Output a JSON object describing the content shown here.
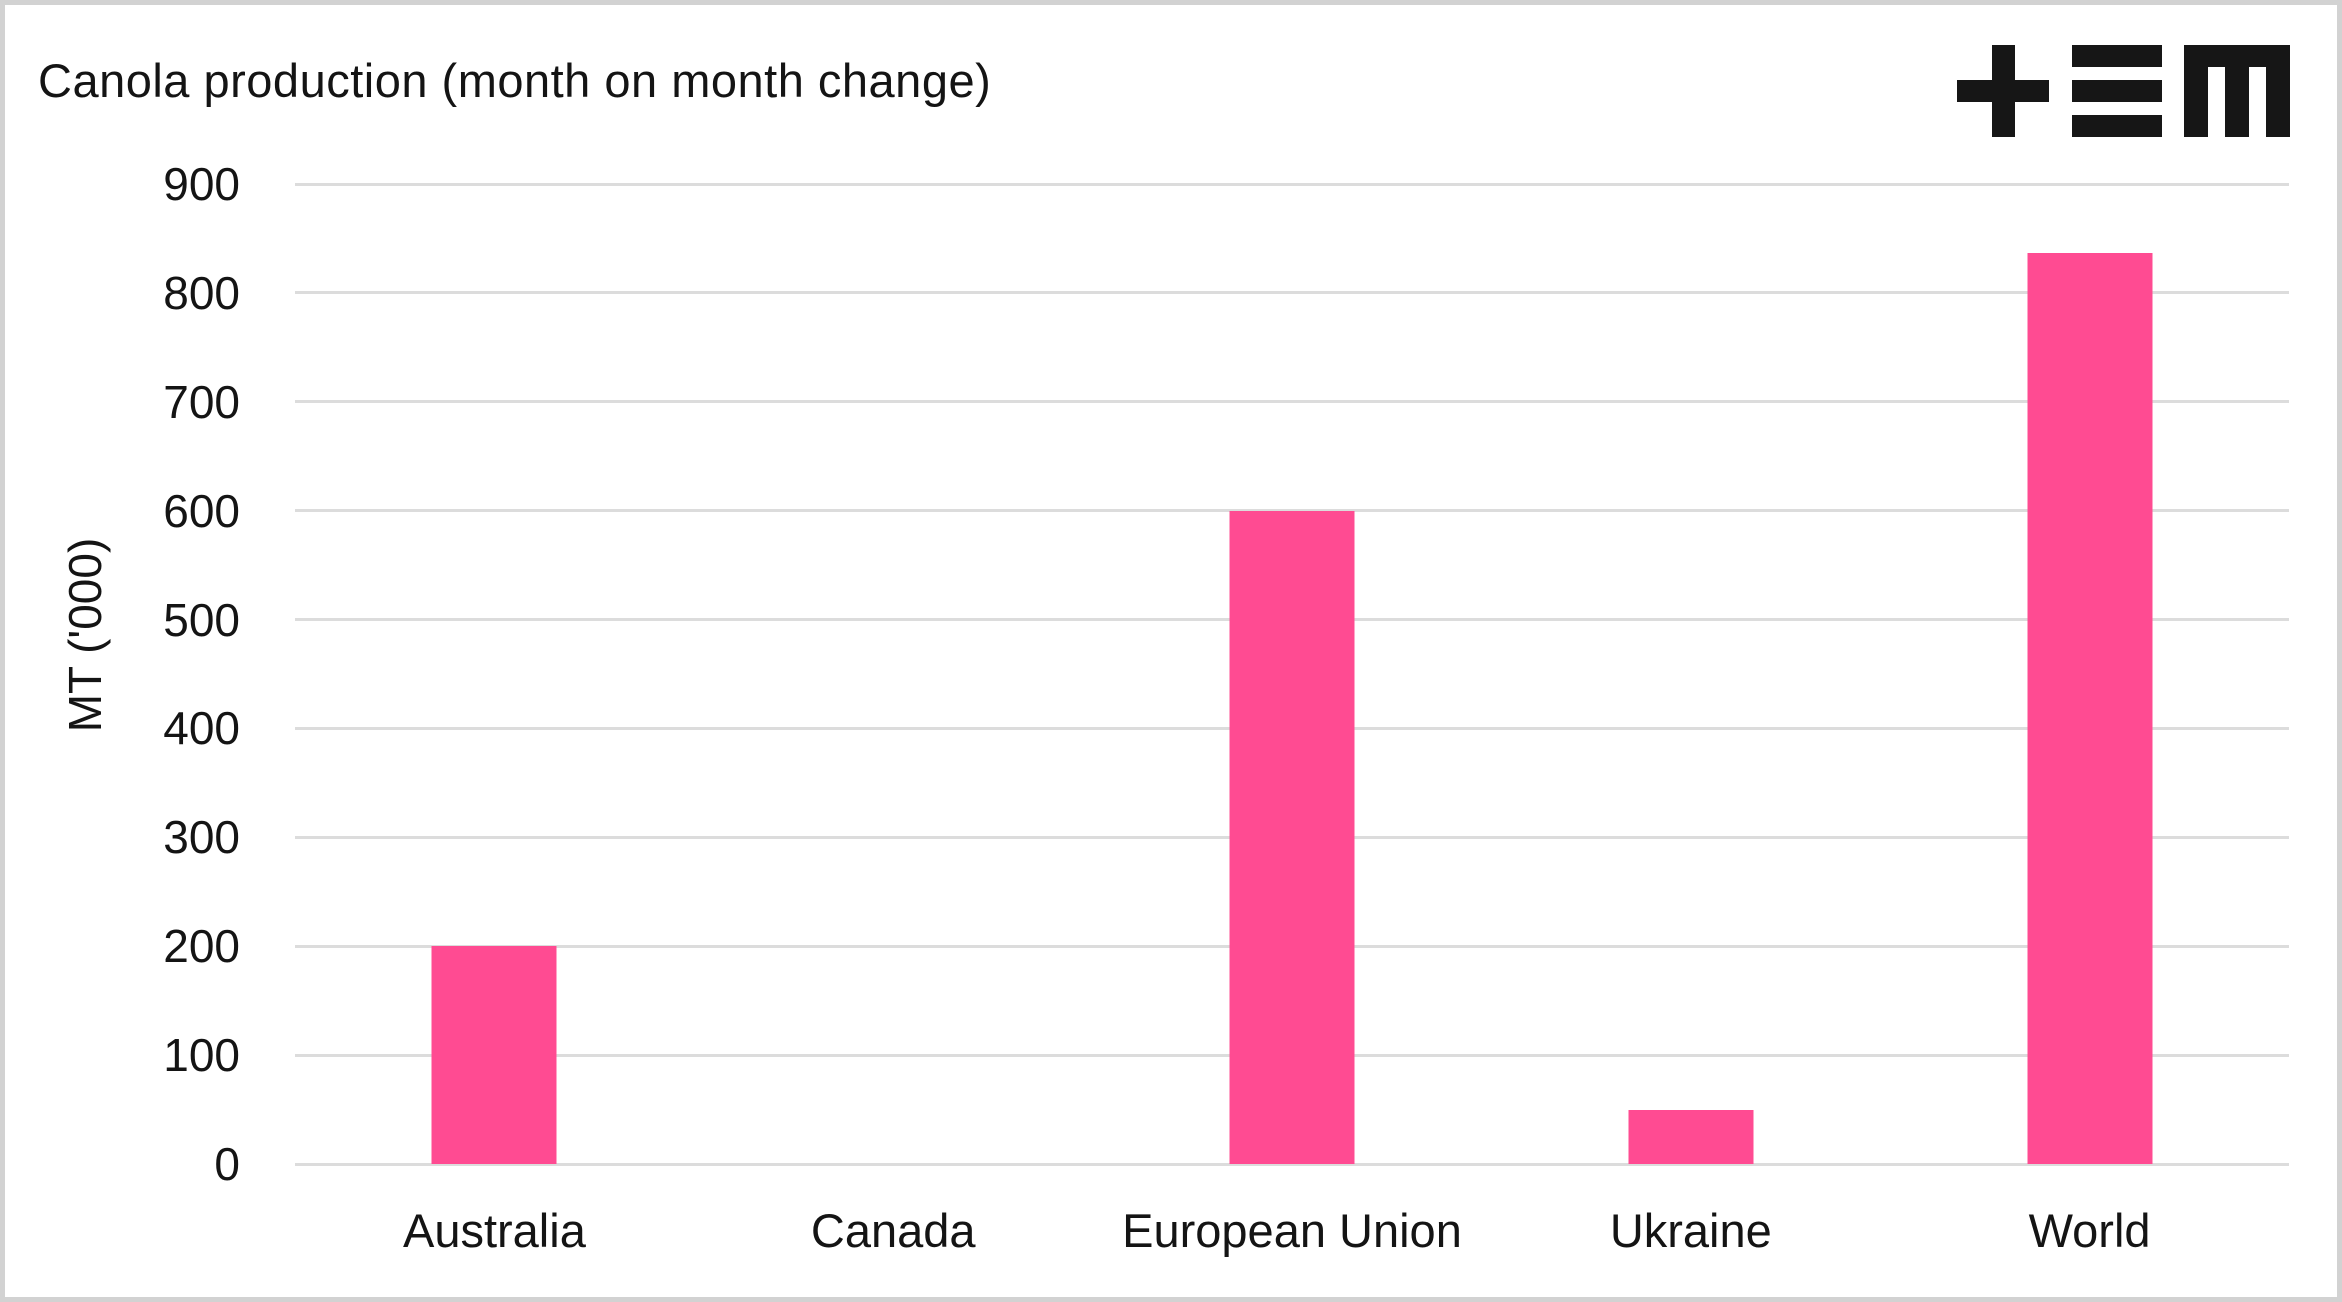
{
  "page": {
    "background_color": "#ffffff",
    "frame_border_color": "#d2d2d2"
  },
  "header": {
    "title": "Canola production (month on month change)"
  },
  "logo": {
    "name": "tem-logo",
    "glyphs": [
      "plus",
      "triple-bar",
      "m"
    ],
    "color": "#161616"
  },
  "chart_data": {
    "type": "bar",
    "title": "Canola production (month on month change)",
    "categories": [
      "Australia",
      "Canada",
      "European Union",
      "Ukraine",
      "World"
    ],
    "values": [
      200,
      0,
      600,
      50,
      837
    ],
    "xlabel": "",
    "ylabel": "MT ('000)",
    "ylim": [
      0,
      900
    ],
    "yticks": [
      0,
      100,
      200,
      300,
      400,
      500,
      600,
      700,
      800,
      900
    ],
    "grid": "horizontal-only",
    "legend": "none",
    "bar_color": "#ff4b92",
    "gridline_color": "#dcdcdc",
    "text_color": "#141414"
  }
}
